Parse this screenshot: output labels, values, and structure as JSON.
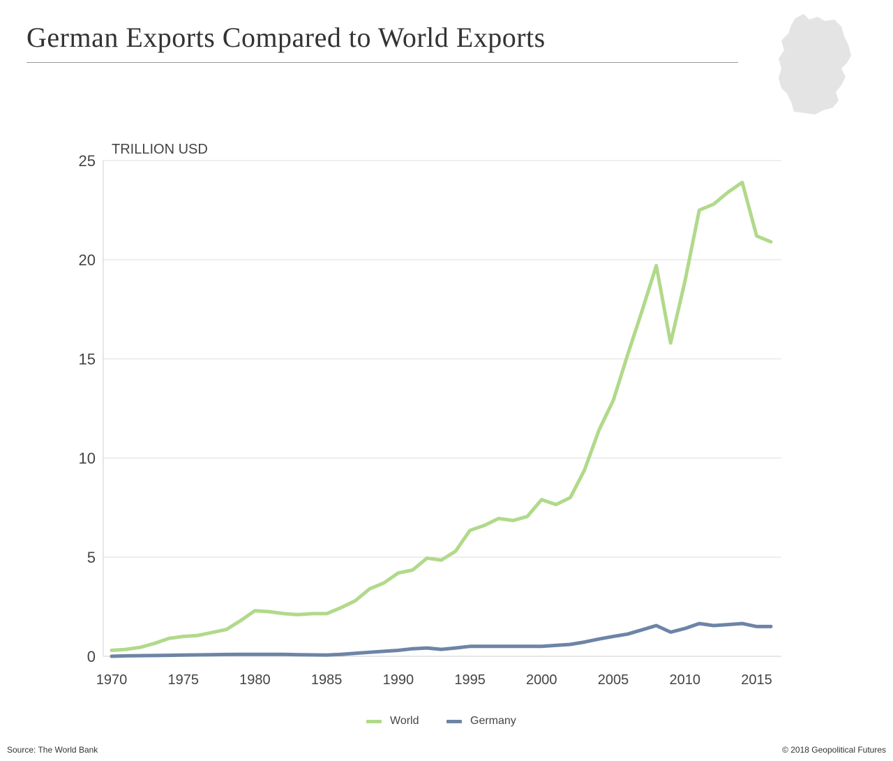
{
  "title": "German Exports Compared to World Exports",
  "source": "Source: The World Bank",
  "copyright": "© 2018 Geopolitical Futures",
  "icon": "germany-map-silhouette",
  "chart_data": {
    "type": "line",
    "title": "German Exports Compared to World Exports",
    "ylabel": "TRILLION USD",
    "xlabel": "",
    "xlim": [
      1970,
      2017
    ],
    "ylim": [
      0,
      25
    ],
    "x_ticks": [
      1970,
      1975,
      1980,
      1985,
      1990,
      1995,
      2000,
      2005,
      2010,
      2015
    ],
    "y_ticks": [
      0,
      5,
      10,
      15,
      20,
      25
    ],
    "grid": "horizontal",
    "legend": "bottom-center",
    "x": [
      1970,
      1971,
      1972,
      1973,
      1974,
      1975,
      1976,
      1977,
      1978,
      1979,
      1980,
      1981,
      1982,
      1983,
      1984,
      1985,
      1986,
      1987,
      1988,
      1989,
      1990,
      1991,
      1992,
      1993,
      1994,
      1995,
      1996,
      1997,
      1998,
      1999,
      2000,
      2001,
      2002,
      2003,
      2004,
      2005,
      2006,
      2007,
      2008,
      2009,
      2010,
      2011,
      2012,
      2013,
      2014,
      2015,
      2016
    ],
    "series": [
      {
        "name": "World",
        "color": "#b1d98a",
        "values": [
          0.3,
          0.35,
          0.45,
          0.65,
          0.9,
          1.0,
          1.05,
          1.2,
          1.35,
          1.8,
          2.3,
          2.25,
          2.15,
          2.1,
          2.15,
          2.15,
          2.45,
          2.8,
          3.4,
          3.7,
          4.2,
          4.35,
          4.95,
          4.85,
          5.3,
          6.35,
          6.6,
          6.95,
          6.85,
          7.05,
          7.9,
          7.65,
          8.0,
          9.4,
          11.4,
          12.9,
          15.2,
          17.4,
          19.7,
          15.8,
          18.9,
          22.5,
          22.8,
          23.4,
          23.9,
          21.2,
          20.9
        ]
      },
      {
        "name": "Germany",
        "color": "#6d84a6",
        "values": [
          0.0,
          0.02,
          0.03,
          0.04,
          0.05,
          0.06,
          0.07,
          0.08,
          0.09,
          0.1,
          0.1,
          0.1,
          0.1,
          0.08,
          0.07,
          0.06,
          0.1,
          0.15,
          0.2,
          0.25,
          0.3,
          0.38,
          0.42,
          0.35,
          0.42,
          0.5,
          0.5,
          0.5,
          0.5,
          0.5,
          0.5,
          0.55,
          0.6,
          0.72,
          0.87,
          1.0,
          1.12,
          1.33,
          1.55,
          1.22,
          1.4,
          1.65,
          1.55,
          1.6,
          1.65,
          1.5,
          1.5
        ]
      }
    ]
  }
}
